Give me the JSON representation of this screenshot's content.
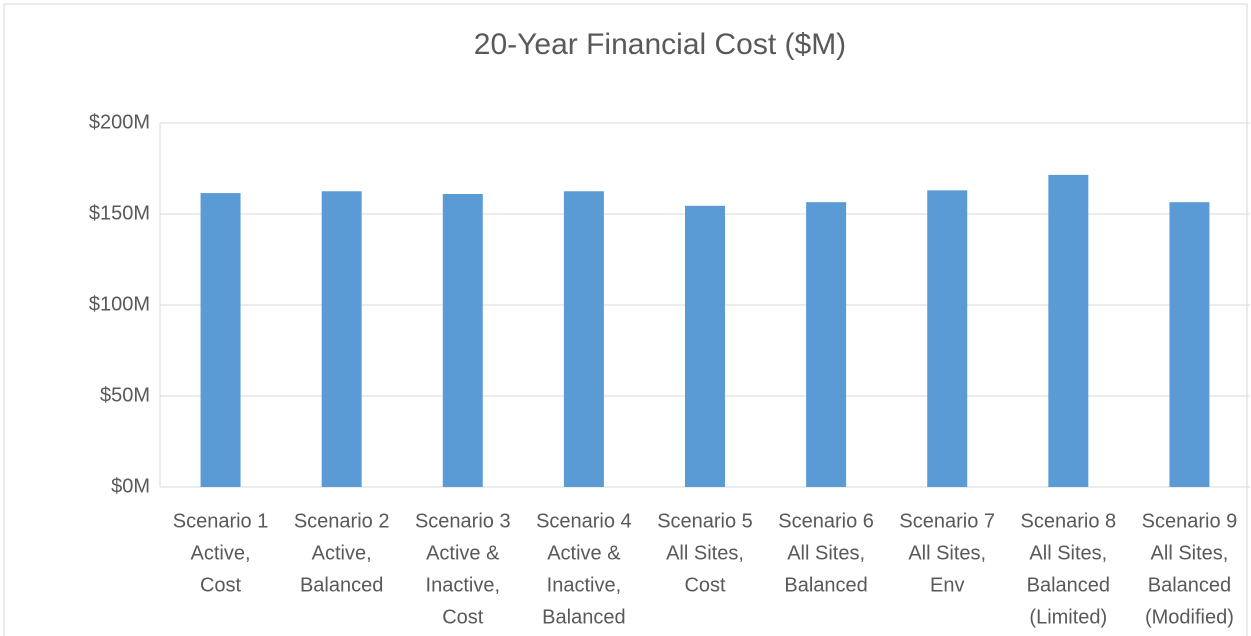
{
  "chart_data": {
    "type": "bar",
    "title": "20-Year Financial Cost ($M)",
    "categories": [
      [
        "Scenario 1",
        "Active,",
        "Cost"
      ],
      [
        "Scenario 2",
        "Active,",
        "Balanced"
      ],
      [
        "Scenario 3",
        "Active &",
        "Inactive,",
        "Cost"
      ],
      [
        "Scenario 4",
        "Active &",
        "Inactive,",
        "Balanced"
      ],
      [
        "Scenario 5",
        "All Sites,",
        "Cost"
      ],
      [
        "Scenario 6",
        "All Sites,",
        "Balanced"
      ],
      [
        "Scenario 7",
        "All Sites,",
        "Env"
      ],
      [
        "Scenario 8",
        "All Sites,",
        "Balanced",
        "(Limited)"
      ],
      [
        "Scenario 9",
        "All Sites,",
        "Balanced",
        "(Modified)"
      ]
    ],
    "values": [
      161.5,
      162.5,
      161,
      162.5,
      154.5,
      156.5,
      163,
      171.5,
      156.5
    ],
    "color": "#5b9bd5",
    "ylim": [
      0,
      200
    ],
    "yticks": [
      {
        "value": 0,
        "label": "$0M"
      },
      {
        "value": 50,
        "label": "$50M"
      },
      {
        "value": 100,
        "label": "$100M"
      },
      {
        "value": 150,
        "label": "$150M"
      },
      {
        "value": 200,
        "label": "$200M"
      }
    ],
    "grid": true
  }
}
